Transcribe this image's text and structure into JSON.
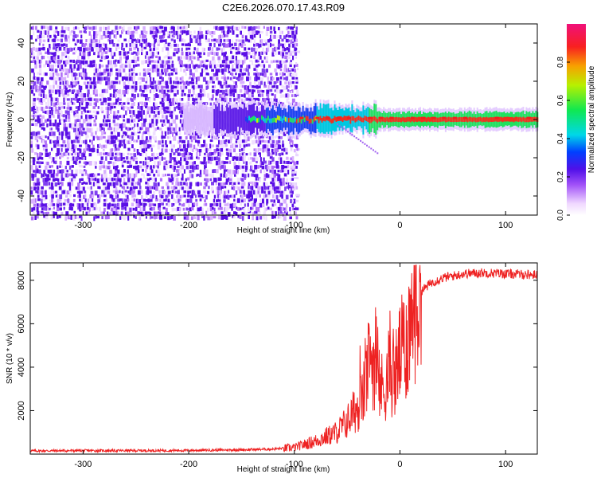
{
  "title": "C2E6.2026.070.17.43.R09",
  "colors": {
    "snr_line": "#ee2222",
    "frame": "#000000"
  },
  "chart_data": [
    {
      "type": "heatmap",
      "name": "spectrogram",
      "xlabel": "Height of straight line (km)",
      "ylabel": "Frequency (Hz)",
      "xlim": [
        -350,
        130
      ],
      "ylim": [
        -50,
        50
      ],
      "xticks": [
        "-300",
        "-200",
        "-100",
        "0",
        "100"
      ],
      "xtick_values": [
        -300,
        -200,
        -100,
        0,
        100
      ],
      "yticks": [
        "-40",
        "-20",
        "0",
        "20",
        "40"
      ],
      "ytick_values": [
        -40,
        -20,
        0,
        20,
        40
      ],
      "noise_region_x": [
        -350,
        -100
      ],
      "signal_band_hz": 0,
      "colorbar": {
        "label": "Normalized spectral amplitude",
        "range": [
          0.0,
          1.0
        ],
        "ticks": [
          "0.0",
          "0.2",
          "0.4",
          "0.6",
          "0.8"
        ],
        "tick_values": [
          0.0,
          0.2,
          0.4,
          0.6,
          0.8
        ]
      }
    },
    {
      "type": "line",
      "name": "snr",
      "xlabel": "Height of straight line (km)",
      "ylabel": "SNR (10 * v/v)",
      "xlim": [
        -350,
        130
      ],
      "ylim": [
        0,
        8800
      ],
      "xticks": [
        "-300",
        "-200",
        "-100",
        "0",
        "100"
      ],
      "xtick_values": [
        -300,
        -200,
        -100,
        0,
        100
      ],
      "yticks": [
        "2000",
        "4000",
        "6000",
        "8000"
      ],
      "ytick_values": [
        2000,
        4000,
        6000,
        8000
      ],
      "series": [
        {
          "name": "SNR",
          "x": [
            -350,
            -300,
            -250,
            -200,
            -150,
            -120,
            -100,
            -80,
            -60,
            -50,
            -40,
            -35,
            -30,
            -25,
            -20,
            -15,
            -10,
            -5,
            0,
            5,
            10,
            15,
            20,
            30,
            40,
            60,
            80,
            100,
            130
          ],
          "y": [
            150,
            160,
            160,
            170,
            200,
            230,
            300,
            600,
            1000,
            1500,
            2200,
            2600,
            4000,
            4500,
            3200,
            3000,
            3800,
            3500,
            4600,
            5000,
            6000,
            7000,
            7500,
            7900,
            8100,
            8300,
            8350,
            8300,
            8250
          ]
        }
      ]
    }
  ]
}
